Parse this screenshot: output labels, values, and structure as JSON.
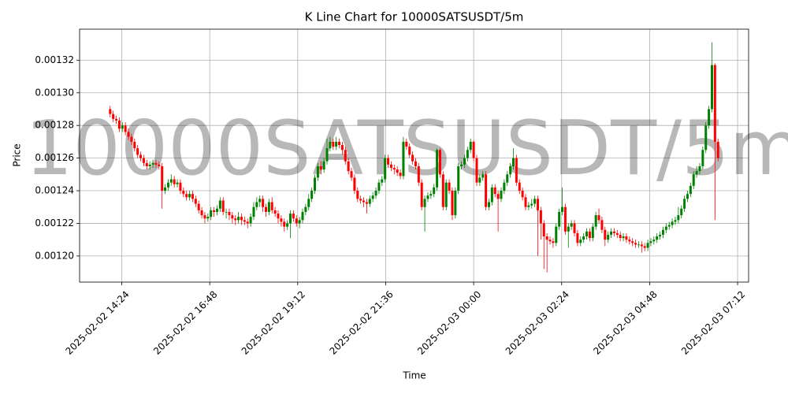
{
  "chart_data": {
    "type": "candlestick",
    "title": "K Line Chart for 10000SATSUSDT/5m",
    "x_label": "Time",
    "y_label": "Price",
    "watermark": "10000SATSUSDT/5m",
    "up_color": "green",
    "down_color": "red",
    "grid": true,
    "xlim": [
      "2025-02-02 13:15",
      "2025-02-03 07:30"
    ],
    "xticks": [
      "2025-02-02 14:24",
      "2025-02-02 16:48",
      "2025-02-02 19:12",
      "2025-02-02 21:36",
      "2025-02-03 00:00",
      "2025-02-03 02:24",
      "2025-02-03 04:48",
      "2025-02-03 07:12"
    ],
    "ylim": [
      0.001184,
      0.001339
    ],
    "yticks": [
      {
        "value": 0.0012,
        "label": "0.00120"
      },
      {
        "value": 0.00122,
        "label": "0.00122"
      },
      {
        "value": 0.00124,
        "label": "0.00124"
      },
      {
        "value": 0.00126,
        "label": "0.00126"
      },
      {
        "value": 0.00128,
        "label": "0.00128"
      },
      {
        "value": 0.0013,
        "label": "0.00130"
      },
      {
        "value": 0.00132,
        "label": "0.00132"
      }
    ],
    "x": [
      "2025-02-02 14:05",
      "2025-02-02 14:10",
      "2025-02-02 14:15",
      "2025-02-02 14:20",
      "2025-02-02 14:25",
      "2025-02-02 14:30",
      "2025-02-02 14:35",
      "2025-02-02 14:40",
      "2025-02-02 14:45",
      "2025-02-02 14:50",
      "2025-02-02 14:55",
      "2025-02-02 15:00",
      "2025-02-02 15:05",
      "2025-02-02 15:10",
      "2025-02-02 15:15",
      "2025-02-02 15:20",
      "2025-02-02 15:25",
      "2025-02-02 15:30",
      "2025-02-02 15:35",
      "2025-02-02 15:40",
      "2025-02-02 15:45",
      "2025-02-02 15:50",
      "2025-02-02 15:55",
      "2025-02-02 16:00",
      "2025-02-02 16:05",
      "2025-02-02 16:10",
      "2025-02-02 16:15",
      "2025-02-02 16:20",
      "2025-02-02 16:25",
      "2025-02-02 16:30",
      "2025-02-02 16:35",
      "2025-02-02 16:40",
      "2025-02-02 16:45",
      "2025-02-02 16:50",
      "2025-02-02 16:55",
      "2025-02-02 17:00",
      "2025-02-02 17:05",
      "2025-02-02 17:10",
      "2025-02-02 17:15",
      "2025-02-02 17:20",
      "2025-02-02 17:25",
      "2025-02-02 17:30",
      "2025-02-02 17:35",
      "2025-02-02 17:40",
      "2025-02-02 17:45",
      "2025-02-02 17:50",
      "2025-02-02 17:55",
      "2025-02-02 18:00",
      "2025-02-02 18:05",
      "2025-02-02 18:10",
      "2025-02-02 18:15",
      "2025-02-02 18:20",
      "2025-02-02 18:25",
      "2025-02-02 18:30",
      "2025-02-02 18:35",
      "2025-02-02 18:40",
      "2025-02-02 18:45",
      "2025-02-02 18:50",
      "2025-02-02 18:55",
      "2025-02-02 19:00",
      "2025-02-02 19:05",
      "2025-02-02 19:10",
      "2025-02-02 19:15",
      "2025-02-02 19:20",
      "2025-02-02 19:25",
      "2025-02-02 19:30",
      "2025-02-02 19:35",
      "2025-02-02 19:40",
      "2025-02-02 19:45",
      "2025-02-02 19:50",
      "2025-02-02 19:55",
      "2025-02-02 20:00",
      "2025-02-02 20:05",
      "2025-02-02 20:10",
      "2025-02-02 20:15",
      "2025-02-02 20:20",
      "2025-02-02 20:25",
      "2025-02-02 20:30",
      "2025-02-02 20:35",
      "2025-02-02 20:40",
      "2025-02-02 20:45",
      "2025-02-02 20:50",
      "2025-02-02 20:55",
      "2025-02-02 21:00",
      "2025-02-02 21:05",
      "2025-02-02 21:10",
      "2025-02-02 21:15",
      "2025-02-02 21:20",
      "2025-02-02 21:25",
      "2025-02-02 21:30",
      "2025-02-02 21:35",
      "2025-02-02 21:40",
      "2025-02-02 21:45",
      "2025-02-02 21:50",
      "2025-02-02 21:55",
      "2025-02-02 22:00",
      "2025-02-02 22:05",
      "2025-02-02 22:10",
      "2025-02-02 22:15",
      "2025-02-02 22:20",
      "2025-02-02 22:25",
      "2025-02-02 22:30",
      "2025-02-02 22:35",
      "2025-02-02 22:40",
      "2025-02-02 22:45",
      "2025-02-02 22:50",
      "2025-02-02 22:55",
      "2025-02-02 23:00",
      "2025-02-02 23:05",
      "2025-02-02 23:10",
      "2025-02-02 23:15",
      "2025-02-02 23:20",
      "2025-02-02 23:25",
      "2025-02-02 23:30",
      "2025-02-02 23:35",
      "2025-02-02 23:40",
      "2025-02-02 23:45",
      "2025-02-02 23:50",
      "2025-02-02 23:55",
      "2025-02-03 00:00",
      "2025-02-03 00:05",
      "2025-02-03 00:10",
      "2025-02-03 00:15",
      "2025-02-03 00:20",
      "2025-02-03 00:25",
      "2025-02-03 00:30",
      "2025-02-03 00:35",
      "2025-02-03 00:40",
      "2025-02-03 00:45",
      "2025-02-03 00:50",
      "2025-02-03 00:55",
      "2025-02-03 01:00",
      "2025-02-03 01:05",
      "2025-02-03 01:10",
      "2025-02-03 01:15",
      "2025-02-03 01:20",
      "2025-02-03 01:25",
      "2025-02-03 01:30",
      "2025-02-03 01:35",
      "2025-02-03 01:40",
      "2025-02-03 01:45",
      "2025-02-03 01:50",
      "2025-02-03 01:55",
      "2025-02-03 02:00",
      "2025-02-03 02:05",
      "2025-02-03 02:10",
      "2025-02-03 02:15",
      "2025-02-03 02:20",
      "2025-02-03 02:25",
      "2025-02-03 02:30",
      "2025-02-03 02:35",
      "2025-02-03 02:40",
      "2025-02-03 02:45",
      "2025-02-03 02:50",
      "2025-02-03 02:55",
      "2025-02-03 03:00",
      "2025-02-03 03:05",
      "2025-02-03 03:10",
      "2025-02-03 03:15",
      "2025-02-03 03:20",
      "2025-02-03 03:25",
      "2025-02-03 03:30",
      "2025-02-03 03:35",
      "2025-02-03 03:40",
      "2025-02-03 03:45",
      "2025-02-03 03:50",
      "2025-02-03 03:55",
      "2025-02-03 04:00",
      "2025-02-03 04:05",
      "2025-02-03 04:10",
      "2025-02-03 04:15",
      "2025-02-03 04:20",
      "2025-02-03 04:25",
      "2025-02-03 04:30",
      "2025-02-03 04:35",
      "2025-02-03 04:40",
      "2025-02-03 04:45",
      "2025-02-03 04:50",
      "2025-02-03 04:55",
      "2025-02-03 05:00",
      "2025-02-03 05:05",
      "2025-02-03 05:10",
      "2025-02-03 05:15",
      "2025-02-03 05:20",
      "2025-02-03 05:25",
      "2025-02-03 05:30",
      "2025-02-03 05:35",
      "2025-02-03 05:40",
      "2025-02-03 05:45",
      "2025-02-03 05:50",
      "2025-02-03 05:55",
      "2025-02-03 06:00",
      "2025-02-03 06:05",
      "2025-02-03 06:10",
      "2025-02-03 06:15",
      "2025-02-03 06:20",
      "2025-02-03 06:25",
      "2025-02-03 06:30",
      "2025-02-03 06:35",
      "2025-02-03 06:40"
    ],
    "open": [
      0.00129,
      0.001287,
      0.001284,
      0.001283,
      0.001278,
      0.00128,
      0.001276,
      0.001273,
      0.00127,
      0.001266,
      0.001262,
      0.00126,
      0.001257,
      0.001255,
      0.001256,
      0.001257,
      0.001256,
      0.001255,
      0.00124,
      0.001242,
      0.001245,
      0.001247,
      0.001244,
      0.001245,
      0.00124,
      0.001238,
      0.001236,
      0.001238,
      0.001235,
      0.001232,
      0.001228,
      0.001225,
      0.001223,
      0.001224,
      0.001228,
      0.001227,
      0.001229,
      0.001234,
      0.001227,
      0.001227,
      0.001225,
      0.001223,
      0.001222,
      0.001224,
      0.001222,
      0.001221,
      0.00122,
      0.001224,
      0.00123,
      0.001233,
      0.001235,
      0.00123,
      0.001227,
      0.001233,
      0.001228,
      0.001226,
      0.001223,
      0.001221,
      0.001218,
      0.00122,
      0.001226,
      0.001223,
      0.00122,
      0.001222,
      0.001227,
      0.00123,
      0.001235,
      0.00124,
      0.001248,
      0.001255,
      0.001253,
      0.001258,
      0.001266,
      0.00127,
      0.001267,
      0.00127,
      0.001268,
      0.001265,
      0.001258,
      0.001252,
      0.001248,
      0.00124,
      0.001235,
      0.001234,
      0.001233,
      0.001232,
      0.001235,
      0.001237,
      0.00124,
      0.001245,
      0.001247,
      0.00126,
      0.001256,
      0.001254,
      0.001253,
      0.001251,
      0.001249,
      0.00127,
      0.001267,
      0.001262,
      0.001258,
      0.001255,
      0.001245,
      0.00123,
      0.001235,
      0.001237,
      0.001238,
      0.001242,
      0.001265,
      0.00125,
      0.00123,
      0.001245,
      0.00124,
      0.001225,
      0.00124,
      0.001255,
      0.001256,
      0.00126,
      0.001265,
      0.00127,
      0.00126,
      0.001245,
      0.001248,
      0.00125,
      0.00123,
      0.001233,
      0.001242,
      0.001238,
      0.001235,
      0.00124,
      0.001245,
      0.00125,
      0.001255,
      0.00126,
      0.001245,
      0.00124,
      0.001236,
      0.00123,
      0.001231,
      0.001232,
      0.001235,
      0.001228,
      0.00122,
      0.001212,
      0.00121,
      0.001209,
      0.001208,
      0.001218,
      0.001227,
      0.00123,
      0.001215,
      0.001218,
      0.00122,
      0.001214,
      0.001208,
      0.00121,
      0.001212,
      0.001215,
      0.001211,
      0.001218,
      0.001225,
      0.001222,
      0.001216,
      0.00121,
      0.001213,
      0.001215,
      0.001214,
      0.001213,
      0.001211,
      0.001212,
      0.00121,
      0.001209,
      0.001208,
      0.001207,
      0.001207,
      0.001206,
      0.001205,
      0.001208,
      0.001209,
      0.00121,
      0.001212,
      0.001213,
      0.001216,
      0.001218,
      0.001219,
      0.001221,
      0.001222,
      0.001225,
      0.001229,
      0.001235,
      0.001238,
      0.001243,
      0.00125,
      0.001252,
      0.001255,
      0.001265,
      0.00128,
      0.00129,
      0.001317,
      0.00127
    ],
    "high": [
      0.001292,
      0.001289,
      0.001286,
      0.001285,
      0.001282,
      0.001282,
      0.001278,
      0.001275,
      0.001272,
      0.001268,
      0.001264,
      0.001262,
      0.001259,
      0.001258,
      0.001259,
      0.001259,
      0.001258,
      0.001257,
      0.001244,
      0.001247,
      0.00125,
      0.001249,
      0.001247,
      0.001247,
      0.001242,
      0.00124,
      0.00124,
      0.00124,
      0.001237,
      0.001234,
      0.00123,
      0.001227,
      0.001226,
      0.00123,
      0.00123,
      0.001231,
      0.001236,
      0.001236,
      0.001229,
      0.001229,
      0.001227,
      0.001225,
      0.001227,
      0.001226,
      0.001224,
      0.001223,
      0.001226,
      0.001233,
      0.001236,
      0.001237,
      0.001237,
      0.001232,
      0.001235,
      0.001236,
      0.00123,
      0.001228,
      0.001225,
      0.001223,
      0.001222,
      0.001228,
      0.001228,
      0.001225,
      0.001224,
      0.001229,
      0.001232,
      0.001238,
      0.001242,
      0.00125,
      0.001257,
      0.001258,
      0.00126,
      0.001272,
      0.001273,
      0.001272,
      0.001273,
      0.001272,
      0.00127,
      0.001267,
      0.00126,
      0.001254,
      0.00125,
      0.001242,
      0.001237,
      0.001236,
      0.001235,
      0.001237,
      0.001239,
      0.001242,
      0.001247,
      0.001249,
      0.001262,
      0.001262,
      0.001258,
      0.001256,
      0.001255,
      0.001253,
      0.001273,
      0.001272,
      0.001269,
      0.001264,
      0.00126,
      0.001257,
      0.001247,
      0.001237,
      0.001239,
      0.00124,
      0.001244,
      0.001266,
      0.001266,
      0.001252,
      0.001247,
      0.001247,
      0.001242,
      0.001242,
      0.001257,
      0.001258,
      0.001262,
      0.001267,
      0.001272,
      0.001271,
      0.001262,
      0.00125,
      0.001252,
      0.001252,
      0.001235,
      0.001244,
      0.001244,
      0.00124,
      0.001242,
      0.001247,
      0.001252,
      0.001257,
      0.001266,
      0.001262,
      0.001247,
      0.001242,
      0.001238,
      0.001233,
      0.001235,
      0.001237,
      0.001237,
      0.00123,
      0.001222,
      0.001214,
      0.001212,
      0.001211,
      0.00122,
      0.001229,
      0.001242,
      0.001232,
      0.00122,
      0.001222,
      0.001222,
      0.001216,
      0.001212,
      0.001214,
      0.001217,
      0.001217,
      0.00122,
      0.001227,
      0.001229,
      0.001224,
      0.001218,
      0.001215,
      0.001217,
      0.001217,
      0.001216,
      0.001215,
      0.001214,
      0.001214,
      0.001212,
      0.001211,
      0.00121,
      0.001209,
      0.001209,
      0.001208,
      0.00121,
      0.001211,
      0.001212,
      0.001214,
      0.001215,
      0.001218,
      0.00122,
      0.001221,
      0.001223,
      0.001224,
      0.00123,
      0.001231,
      0.001237,
      0.00124,
      0.001245,
      0.001252,
      0.001255,
      0.001257,
      0.001267,
      0.001282,
      0.001292,
      0.001331,
      0.001318,
      0.001272
    ],
    "low": [
      0.001285,
      0.001282,
      0.001281,
      0.001276,
      0.001276,
      0.001274,
      0.001271,
      0.001268,
      0.001264,
      0.00126,
      0.001258,
      0.001255,
      0.001253,
      0.001253,
      0.001254,
      0.001254,
      0.001253,
      0.001229,
      0.001238,
      0.00124,
      0.001243,
      0.001242,
      0.001242,
      0.001238,
      0.001236,
      0.001234,
      0.001234,
      0.001233,
      0.00123,
      0.001226,
      0.001223,
      0.00122,
      0.001221,
      0.001222,
      0.001224,
      0.001225,
      0.001227,
      0.001225,
      0.001223,
      0.001222,
      0.00122,
      0.001219,
      0.00122,
      0.001219,
      0.001219,
      0.001217,
      0.001218,
      0.001222,
      0.001228,
      0.00123,
      0.001227,
      0.001224,
      0.001225,
      0.001226,
      0.001224,
      0.00122,
      0.001218,
      0.001215,
      0.001216,
      0.001211,
      0.001221,
      0.001218,
      0.001217,
      0.00122,
      0.001225,
      0.001228,
      0.001233,
      0.001238,
      0.001246,
      0.00125,
      0.001251,
      0.001256,
      0.001264,
      0.001265,
      0.001265,
      0.001266,
      0.001262,
      0.001256,
      0.00125,
      0.001246,
      0.001238,
      0.001233,
      0.001232,
      0.00123,
      0.001226,
      0.00123,
      0.001233,
      0.001235,
      0.001238,
      0.001243,
      0.001245,
      0.001254,
      0.001252,
      0.00125,
      0.001249,
      0.001247,
      0.001247,
      0.001265,
      0.00126,
      0.001256,
      0.001253,
      0.001243,
      0.001228,
      0.001215,
      0.001233,
      0.001235,
      0.001236,
      0.00124,
      0.001248,
      0.001228,
      0.001228,
      0.001238,
      0.001222,
      0.001223,
      0.001238,
      0.001253,
      0.001254,
      0.001258,
      0.001263,
      0.001258,
      0.001243,
      0.001243,
      0.001246,
      0.001228,
      0.001228,
      0.001231,
      0.001236,
      0.001215,
      0.001233,
      0.001238,
      0.001243,
      0.001248,
      0.001253,
      0.001243,
      0.001238,
      0.001234,
      0.001228,
      0.001228,
      0.001229,
      0.00123,
      0.0012,
      0.00121,
      0.001192,
      0.00119,
      0.001207,
      0.001205,
      0.001206,
      0.001216,
      0.001225,
      0.001213,
      0.001205,
      0.001216,
      0.001212,
      0.001206,
      0.001206,
      0.001208,
      0.00121,
      0.001209,
      0.001209,
      0.001216,
      0.00122,
      0.001214,
      0.001206,
      0.001208,
      0.001211,
      0.001212,
      0.001211,
      0.001209,
      0.001209,
      0.001208,
      0.001207,
      0.001206,
      0.001205,
      0.001205,
      0.001202,
      0.001203,
      0.001203,
      0.001206,
      0.001207,
      0.001208,
      0.00121,
      0.001211,
      0.001214,
      0.001216,
      0.001217,
      0.001219,
      0.00122,
      0.001223,
      0.001227,
      0.001233,
      0.001236,
      0.001241,
      0.001248,
      0.00125,
      0.001253,
      0.001263,
      0.001278,
      0.001288,
      0.001222,
      0.001258
    ],
    "close": [
      0.001287,
      0.001284,
      0.001283,
      0.001278,
      0.00128,
      0.001276,
      0.001273,
      0.00127,
      0.001266,
      0.001262,
      0.00126,
      0.001257,
      0.001255,
      0.001256,
      0.001257,
      0.001256,
      0.001255,
      0.00124,
      0.001242,
      0.001245,
      0.001247,
      0.001244,
      0.001245,
      0.00124,
      0.001238,
      0.001236,
      0.001238,
      0.001235,
      0.001232,
      0.001228,
      0.001225,
      0.001223,
      0.001224,
      0.001228,
      0.001227,
      0.001229,
      0.001234,
      0.001227,
      0.001227,
      0.001225,
      0.001223,
      0.001222,
      0.001224,
      0.001222,
      0.001221,
      0.00122,
      0.001224,
      0.00123,
      0.001233,
      0.001235,
      0.00123,
      0.001227,
      0.001233,
      0.001228,
      0.001226,
      0.001223,
      0.001221,
      0.001218,
      0.00122,
      0.001226,
      0.001223,
      0.00122,
      0.001222,
      0.001227,
      0.00123,
      0.001235,
      0.00124,
      0.001248,
      0.001255,
      0.001253,
      0.001258,
      0.001266,
      0.00127,
      0.001267,
      0.00127,
      0.001268,
      0.001265,
      0.001258,
      0.001252,
      0.001248,
      0.00124,
      0.001235,
      0.001234,
      0.001233,
      0.001232,
      0.001235,
      0.001237,
      0.00124,
      0.001245,
      0.001247,
      0.00126,
      0.001256,
      0.001254,
      0.001253,
      0.001251,
      0.001249,
      0.00127,
      0.001267,
      0.001262,
      0.001258,
      0.001255,
      0.001245,
      0.00123,
      0.001235,
      0.001237,
      0.001238,
      0.001242,
      0.001265,
      0.00125,
      0.00123,
      0.001245,
      0.00124,
      0.001225,
      0.00124,
      0.001255,
      0.001256,
      0.00126,
      0.001265,
      0.00127,
      0.00126,
      0.001245,
      0.001248,
      0.00125,
      0.00123,
      0.001233,
      0.001242,
      0.001238,
      0.001235,
      0.00124,
      0.001245,
      0.00125,
      0.001255,
      0.00126,
      0.001245,
      0.00124,
      0.001236,
      0.00123,
      0.001231,
      0.001232,
      0.001235,
      0.001228,
      0.00122,
      0.001212,
      0.00121,
      0.001209,
      0.001208,
      0.001218,
      0.001227,
      0.00123,
      0.001215,
      0.001218,
      0.00122,
      0.001214,
      0.001208,
      0.00121,
      0.001212,
      0.001215,
      0.001211,
      0.001218,
      0.001225,
      0.001222,
      0.001216,
      0.00121,
      0.001213,
      0.001215,
      0.001214,
      0.001213,
      0.001211,
      0.001212,
      0.00121,
      0.001209,
      0.001208,
      0.001207,
      0.001207,
      0.001206,
      0.001205,
      0.001208,
      0.001209,
      0.00121,
      0.001212,
      0.001213,
      0.001216,
      0.001218,
      0.001219,
      0.001221,
      0.001222,
      0.001225,
      0.001229,
      0.001235,
      0.001238,
      0.001243,
      0.00125,
      0.001252,
      0.001255,
      0.001265,
      0.00128,
      0.00129,
      0.001317,
      0.00127,
      0.00126
    ]
  }
}
